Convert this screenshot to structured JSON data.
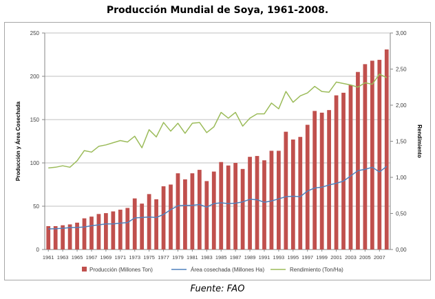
{
  "title": "Producción Mundial de Soya, 1961-2008.",
  "source": "Fuente: FAO",
  "chart_data": {
    "type": "bar",
    "ylabel": "Producción y Área Cosechada",
    "y2label": "Rendimiento",
    "ylim": [
      0,
      250
    ],
    "y2lim": [
      0,
      3.0
    ],
    "yticks": [
      "0",
      "50",
      "100",
      "150",
      "200",
      "250"
    ],
    "y2ticks": [
      "0,00",
      "0,50",
      "1,00",
      "1,50",
      "2,00",
      "2,50",
      "3,00"
    ],
    "xtick_labels": [
      "1961",
      "1963",
      "1965",
      "1967",
      "1969",
      "1971",
      "1973",
      "1975",
      "1977",
      "1979",
      "1981",
      "1983",
      "1985",
      "1987",
      "1989",
      "1991",
      "1993",
      "1995",
      "1997",
      "1999",
      "2001",
      "2003",
      "2005",
      "2007"
    ],
    "x": [
      1961,
      1962,
      1963,
      1964,
      1965,
      1966,
      1967,
      1968,
      1969,
      1970,
      1971,
      1972,
      1973,
      1974,
      1975,
      1976,
      1977,
      1978,
      1979,
      1980,
      1981,
      1982,
      1983,
      1984,
      1985,
      1986,
      1987,
      1988,
      1989,
      1990,
      1991,
      1992,
      1993,
      1994,
      1995,
      1996,
      1997,
      1998,
      1999,
      2000,
      2001,
      2002,
      2003,
      2004,
      2005,
      2006,
      2007,
      2008
    ],
    "grid": true,
    "legend_position": "bottom",
    "series": [
      {
        "name": "Producción (Millones Ton)",
        "type": "bar",
        "axis": "left",
        "color": "#c0504d",
        "values": [
          27,
          27,
          28,
          29,
          31,
          36,
          38,
          41,
          42,
          44,
          46,
          48,
          59,
          53,
          64,
          58,
          73,
          75,
          88,
          81,
          88,
          92,
          79,
          90,
          101,
          97,
          100,
          93,
          107,
          108,
          103,
          114,
          114,
          136,
          127,
          130,
          144,
          160,
          158,
          161,
          178,
          181,
          190,
          205,
          214,
          218,
          219,
          231
        ]
      },
      {
        "name": "Área cosechada (Millones Ha)",
        "type": "line",
        "axis": "left",
        "color": "#4f81bd",
        "values": [
          23.8,
          24.0,
          24.5,
          25.3,
          25.5,
          26.0,
          27.5,
          28.5,
          29.5,
          29.5,
          30.5,
          31.0,
          36.5,
          37.0,
          37.5,
          37.0,
          40.5,
          46.0,
          50.5,
          51.0,
          51.0,
          52.0,
          49.0,
          53.0,
          54.0,
          53.0,
          53.5,
          55.0,
          58.0,
          57.5,
          54.5,
          56.0,
          58.5,
          61.0,
          61.5,
          61.0,
          67.5,
          71.0,
          72.0,
          74.5,
          76.5,
          79.0,
          85.0,
          91.0,
          92.5,
          95.0,
          89.5,
          96.0
        ]
      },
      {
        "name": "Rendimiento (Ton/Ha)",
        "type": "line",
        "axis": "right",
        "color": "#9bbb59",
        "values": [
          1.13,
          1.14,
          1.16,
          1.14,
          1.23,
          1.37,
          1.35,
          1.43,
          1.45,
          1.48,
          1.51,
          1.49,
          1.57,
          1.41,
          1.66,
          1.56,
          1.76,
          1.64,
          1.75,
          1.61,
          1.75,
          1.76,
          1.62,
          1.7,
          1.9,
          1.82,
          1.9,
          1.71,
          1.82,
          1.88,
          1.88,
          2.03,
          1.95,
          2.19,
          2.04,
          2.13,
          2.17,
          2.26,
          2.19,
          2.18,
          2.32,
          2.3,
          2.28,
          2.25,
          2.31,
          2.29,
          2.43,
          2.38
        ]
      }
    ]
  }
}
